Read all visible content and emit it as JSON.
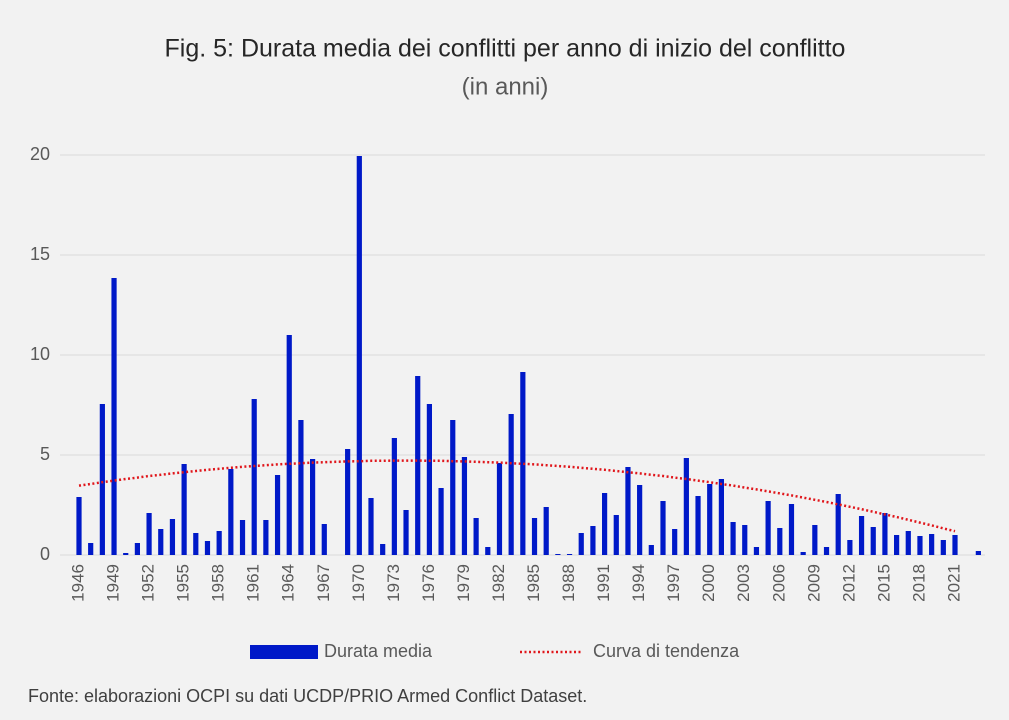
{
  "chart_data": {
    "type": "bar",
    "title": "Fig. 5: Durata media dei conflitti per anno di inizio del conflitto",
    "subtitle": "(in anni)",
    "source": "Fonte: elaborazioni OCPI su dati UCDP/PRIO Armed Conflict Dataset.",
    "categories": [
      "1946",
      null,
      null,
      "1949",
      null,
      null,
      "1952",
      null,
      null,
      "1955",
      null,
      null,
      "1958",
      null,
      null,
      "1961",
      null,
      null,
      "1964",
      null,
      null,
      "1967",
      null,
      null,
      "1970",
      null,
      null,
      "1973",
      null,
      null,
      "1976",
      null,
      null,
      "1979",
      null,
      null,
      "1982",
      null,
      null,
      "1985",
      null,
      null,
      "1988",
      null,
      null,
      "1991",
      null,
      null,
      "1994",
      null,
      null,
      "1997",
      null,
      null,
      "2000",
      null,
      null,
      "2003",
      null,
      null,
      "2006",
      null,
      null,
      "2009",
      null,
      null,
      "2012",
      null,
      null,
      "2015",
      null,
      null,
      "2018",
      null,
      null,
      "2021",
      null,
      null
    ],
    "series": [
      {
        "name": "Durata media",
        "type": "bar",
        "color": "#0019c8",
        "values": [
          2.9,
          0.6,
          7.55,
          13.85,
          0.1,
          0.6,
          2.1,
          1.3,
          1.8,
          4.55,
          1.1,
          0.7,
          1.2,
          4.3,
          1.75,
          7.8,
          1.75,
          4.0,
          11.0,
          6.75,
          4.8,
          1.55,
          0,
          5.3,
          19.95,
          2.85,
          0.55,
          5.85,
          2.25,
          8.95,
          7.55,
          3.35,
          6.75,
          4.9,
          1.85,
          0.4,
          4.6,
          7.05,
          9.15,
          1.85,
          2.4,
          0.05,
          0.05,
          1.1,
          1.45,
          3.1,
          2.0,
          4.4,
          3.5,
          0.5,
          2.7,
          1.3,
          4.85,
          2.95,
          3.55,
          3.8,
          1.65,
          1.5,
          0.4,
          2.7,
          1.35,
          2.55,
          0.15,
          1.5,
          0.4,
          3.05,
          0.75,
          1.95,
          1.4,
          2.1,
          1.0,
          1.2,
          0.95,
          1.05,
          0.75,
          1.0,
          0,
          0.2
        ]
      },
      {
        "name": "Curva di tendenza",
        "type": "line",
        "color": "#e0161b",
        "values": [
          3.47,
          3.55,
          3.64,
          3.72,
          3.8,
          3.87,
          3.95,
          4.01,
          4.08,
          4.14,
          4.2,
          4.26,
          4.31,
          4.36,
          4.41,
          4.45,
          4.49,
          4.53,
          4.56,
          4.59,
          4.62,
          4.64,
          4.66,
          4.68,
          4.69,
          4.71,
          4.71,
          4.72,
          4.72,
          4.72,
          4.71,
          4.71,
          4.69,
          4.68,
          4.66,
          4.64,
          4.62,
          4.59,
          4.56,
          4.53,
          4.49,
          4.45,
          4.41,
          4.36,
          4.31,
          4.26,
          4.2,
          4.14,
          4.08,
          4.01,
          3.95,
          3.87,
          3.8,
          3.72,
          3.64,
          3.55,
          3.47,
          3.37,
          3.28,
          3.18,
          3.08,
          2.98,
          2.87,
          2.76,
          2.65,
          2.53,
          2.41,
          2.29,
          2.16,
          2.03,
          1.9,
          1.76,
          1.62,
          1.48,
          1.33,
          1.19,
          null,
          null
        ]
      }
    ],
    "ylim": [
      0,
      20
    ],
    "yticks": [
      0,
      5,
      10,
      15,
      20
    ],
    "grid": true,
    "legend": "bottom"
  }
}
